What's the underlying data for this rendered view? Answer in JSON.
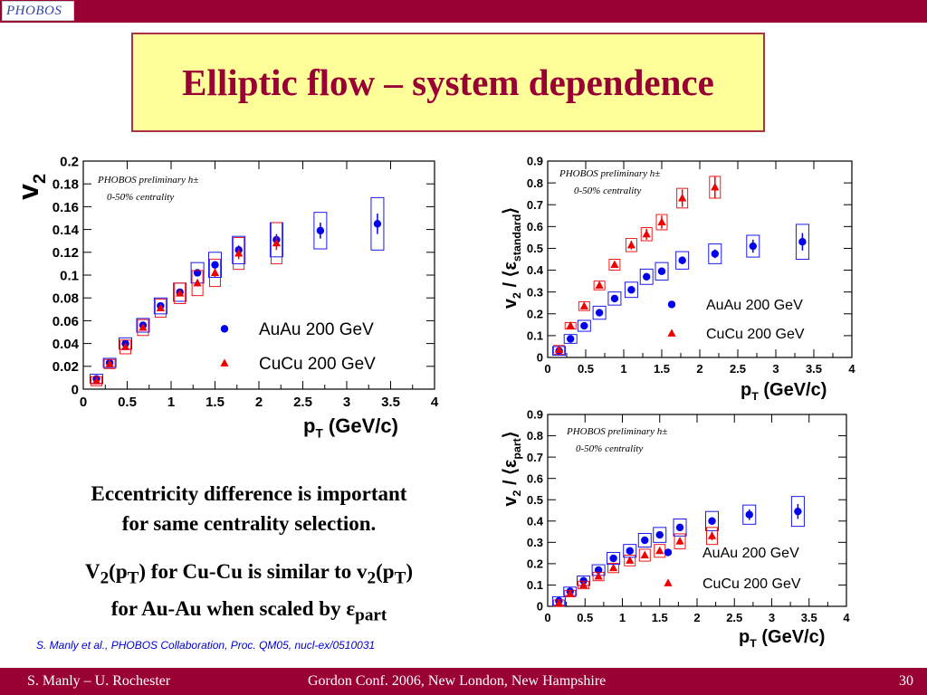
{
  "header": {
    "logo_text": "PHOBOS"
  },
  "slide": {
    "title": "Elliptic flow – system dependence",
    "text1_line1": "Eccentricity difference is important",
    "text1_line2": "for same centrality selection.",
    "text2": {
      "l1a": "V",
      "l1b": "2",
      "l1c": "(p",
      "l1d": "T",
      "l1e": ") for Cu-Cu is similar to v",
      "l1f": "2",
      "l1g": "(p",
      "l1h": "T",
      "l1i": ")",
      "l2a": "for Au-Au when scaled by ε",
      "l2b": "part"
    },
    "citation": "S. Manly et al., PHOBOS Collaboration, Proc. QM05, nucl-ex/0510031"
  },
  "footer": {
    "left": "S. Manly – U. Rochester",
    "center": "Gordon Conf. 2006, New London, New Hampshire",
    "page": "30"
  },
  "colors": {
    "auau": "#0000ee",
    "cucu": "#ee0000",
    "brand": "#990033",
    "title_bg": "#ffff99"
  },
  "chart_data": [
    {
      "type": "scatter",
      "ylabel": "v2",
      "xlabel": "pT (GeV/c)",
      "xlim": [
        0,
        4
      ],
      "ylim": [
        0,
        0.2
      ],
      "xticks": [
        "0",
        "0.5",
        "1",
        "1.5",
        "2",
        "2.5",
        "3",
        "3.5",
        "4"
      ],
      "yticks": [
        "0",
        "0.02",
        "0.04",
        "0.06",
        "0.08",
        "0.1",
        "0.12",
        "0.14",
        "0.16",
        "0.18",
        "0.2"
      ],
      "annotation": [
        "PHOBOS preliminary h±",
        "0-50% centrality"
      ],
      "legend": [
        "AuAu 200 GeV",
        "CuCu 200 GeV"
      ],
      "series": [
        {
          "name": "AuAu 200 GeV",
          "marker": "circle",
          "color": "#0000ee",
          "x": [
            0.15,
            0.3,
            0.48,
            0.68,
            0.88,
            1.1,
            1.3,
            1.5,
            1.77,
            2.2,
            2.7,
            3.35
          ],
          "y": [
            0.009,
            0.023,
            0.04,
            0.056,
            0.073,
            0.085,
            0.102,
            0.109,
            0.122,
            0.131,
            0.139,
            0.145
          ],
          "err": [
            0.001,
            0.002,
            0.002,
            0.002,
            0.002,
            0.002,
            0.003,
            0.003,
            0.004,
            0.005,
            0.007,
            0.009
          ],
          "sys": [
            0.004,
            0.004,
            0.005,
            0.006,
            0.007,
            0.008,
            0.009,
            0.011,
            0.012,
            0.015,
            0.016,
            0.023
          ]
        },
        {
          "name": "CuCu 200 GeV",
          "marker": "triangle",
          "color": "#ee0000",
          "x": [
            0.15,
            0.3,
            0.48,
            0.68,
            0.88,
            1.1,
            1.3,
            1.5,
            1.77,
            2.2
          ],
          "y": [
            0.007,
            0.022,
            0.037,
            0.054,
            0.071,
            0.084,
            0.093,
            0.102,
            0.119,
            0.128
          ],
          "err": [
            0.001,
            0.002,
            0.002,
            0.002,
            0.002,
            0.002,
            0.003,
            0.004,
            0.005,
            0.006
          ],
          "sys": [
            0.004,
            0.004,
            0.006,
            0.007,
            0.008,
            0.009,
            0.011,
            0.012,
            0.014,
            0.018
          ]
        }
      ]
    },
    {
      "type": "scatter",
      "ylabel": "v2 / ⟨εstandard⟩",
      "xlabel": "pT (GeV/c)",
      "xlim": [
        0,
        4
      ],
      "ylim": [
        0,
        0.9
      ],
      "xticks": [
        "0",
        "0.5",
        "1",
        "1.5",
        "2",
        "2.5",
        "3",
        "3.5",
        "4"
      ],
      "yticks": [
        "0",
        "0.1",
        "0.2",
        "0.3",
        "0.4",
        "0.5",
        "0.6",
        "0.7",
        "0.8",
        "0.9"
      ],
      "annotation": [
        "PHOBOS preliminary h±",
        "0-50% centrality"
      ],
      "legend": [
        "AuAu 200 GeV",
        "CuCu 200 GeV"
      ],
      "series": [
        {
          "name": "AuAu 200 GeV",
          "marker": "circle",
          "color": "#0000ee",
          "x": [
            0.15,
            0.3,
            0.48,
            0.68,
            0.88,
            1.1,
            1.3,
            1.5,
            1.77,
            2.2,
            2.7,
            3.35
          ],
          "y": [
            0.03,
            0.085,
            0.145,
            0.205,
            0.27,
            0.31,
            0.37,
            0.395,
            0.445,
            0.475,
            0.51,
            0.53
          ],
          "err": [
            0.005,
            0.007,
            0.008,
            0.008,
            0.01,
            0.01,
            0.012,
            0.015,
            0.018,
            0.02,
            0.03,
            0.04
          ],
          "sys": [
            0.02,
            0.02,
            0.025,
            0.03,
            0.03,
            0.035,
            0.035,
            0.04,
            0.04,
            0.045,
            0.05,
            0.08
          ]
        },
        {
          "name": "CuCu 200 GeV",
          "marker": "triangle",
          "color": "#ee0000",
          "x": [
            0.15,
            0.3,
            0.48,
            0.68,
            0.88,
            1.1,
            1.3,
            1.5,
            1.77,
            2.2
          ],
          "y": [
            0.035,
            0.145,
            0.235,
            0.33,
            0.425,
            0.515,
            0.565,
            0.62,
            0.73,
            0.78
          ],
          "err": [
            0.005,
            0.01,
            0.01,
            0.012,
            0.015,
            0.02,
            0.025,
            0.03,
            0.04,
            0.05
          ],
          "sys": [
            0.02,
            0.015,
            0.02,
            0.02,
            0.025,
            0.03,
            0.03,
            0.035,
            0.045,
            0.05
          ]
        }
      ]
    },
    {
      "type": "scatter",
      "ylabel": "v2 / ⟨εpart⟩",
      "xlabel": "pT (GeV/c)",
      "xlim": [
        0,
        4
      ],
      "ylim": [
        0,
        0.9
      ],
      "xticks": [
        "0",
        "0.5",
        "1",
        "1.5",
        "2",
        "2.5",
        "3",
        "3.5",
        "4"
      ],
      "yticks": [
        "0",
        "0.1",
        "0.2",
        "0.3",
        "0.4",
        "0.5",
        "0.6",
        "0.7",
        "0.8",
        "0.9"
      ],
      "annotation": [
        "PHOBOS preliminary h±",
        "0-50% centrality"
      ],
      "legend": [
        "AuAu 200 GeV",
        "CuCu 200 GeV"
      ],
      "series": [
        {
          "name": "AuAu 200 GeV",
          "marker": "circle",
          "color": "#0000ee",
          "x": [
            0.15,
            0.3,
            0.48,
            0.68,
            0.88,
            1.1,
            1.3,
            1.5,
            1.77,
            2.2,
            2.7,
            3.35
          ],
          "y": [
            0.025,
            0.07,
            0.12,
            0.17,
            0.225,
            0.26,
            0.31,
            0.335,
            0.37,
            0.4,
            0.43,
            0.445
          ],
          "err": [
            0.005,
            0.006,
            0.007,
            0.008,
            0.009,
            0.01,
            0.012,
            0.014,
            0.016,
            0.018,
            0.025,
            0.035
          ],
          "sys": [
            0.02,
            0.02,
            0.022,
            0.025,
            0.028,
            0.03,
            0.032,
            0.035,
            0.04,
            0.045,
            0.045,
            0.07
          ]
        },
        {
          "name": "CuCu 200 GeV",
          "marker": "triangle",
          "color": "#ee0000",
          "x": [
            0.15,
            0.3,
            0.48,
            0.68,
            0.88,
            1.1,
            1.3,
            1.5,
            1.77,
            2.2
          ],
          "y": [
            0.015,
            0.06,
            0.1,
            0.14,
            0.18,
            0.215,
            0.24,
            0.26,
            0.305,
            0.33
          ],
          "err": [
            0.003,
            0.005,
            0.006,
            0.007,
            0.008,
            0.01,
            0.012,
            0.014,
            0.016,
            0.02
          ],
          "sys": [
            0.015,
            0.015,
            0.018,
            0.02,
            0.022,
            0.025,
            0.028,
            0.03,
            0.035,
            0.04
          ]
        }
      ]
    }
  ]
}
